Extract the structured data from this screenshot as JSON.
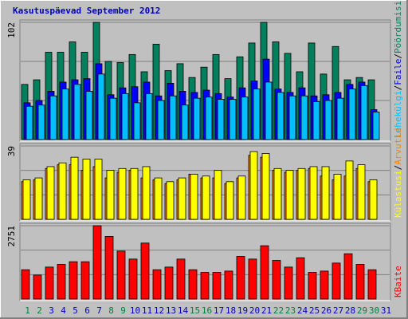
{
  "chart_data": [
    {
      "type": "bar",
      "title": "Kasutuspäevad September 2012",
      "ylim": [
        0,
        102
      ],
      "yticks": [
        102
      ],
      "legend_separator": "/",
      "series": [
        {
          "name": "Pöördumisi",
          "color": "#00805c",
          "values": [
            48,
            52,
            76,
            76,
            85,
            76,
            102,
            68,
            67,
            74,
            59,
            83,
            60,
            66,
            54,
            63,
            74,
            53,
            72,
            84,
            102,
            85,
            75,
            59,
            84,
            57,
            81,
            52,
            54,
            52,
            null
          ]
        },
        {
          "name": "Faile",
          "color": "#0000ff",
          "values": [
            32,
            34,
            42,
            50,
            52,
            53,
            66,
            39,
            45,
            46,
            50,
            38,
            49,
            42,
            41,
            43,
            40,
            37,
            45,
            51,
            70,
            44,
            41,
            45,
            38,
            39,
            41,
            48,
            50,
            26,
            null
          ]
        },
        {
          "name": "Lehekülgi",
          "color": "#00bfff",
          "values": [
            29,
            30,
            38,
            44,
            48,
            42,
            57,
            36,
            40,
            32,
            40,
            34,
            38,
            30,
            36,
            37,
            35,
            35,
            37,
            44,
            50,
            41,
            38,
            38,
            33,
            34,
            36,
            44,
            47,
            24,
            null
          ]
        }
      ]
    },
    {
      "type": "bar",
      "ylim": [
        0,
        39
      ],
      "yticks": [
        39
      ],
      "legend_separator": "/",
      "series": [
        {
          "name": "Arvutid",
          "color": "#ff8000",
          "values": [
            20,
            21,
            27,
            29,
            29,
            26,
            28,
            22,
            25,
            26,
            22,
            21,
            19,
            21,
            24,
            22,
            22,
            19,
            22,
            34,
            33,
            26,
            25,
            26,
            27,
            23,
            21,
            23,
            27,
            20,
            null
          ]
        },
        {
          "name": "Külastusi",
          "color": "#ffff00",
          "values": [
            21,
            22,
            28,
            30,
            33,
            32,
            32,
            26,
            27,
            27,
            28,
            22,
            20,
            22,
            24,
            23,
            26,
            20,
            23,
            36,
            35,
            27,
            26,
            27,
            28,
            28,
            24,
            31,
            29,
            21,
            null
          ]
        }
      ]
    },
    {
      "type": "bar",
      "ylim": [
        0,
        2751
      ],
      "yticks": [
        2751
      ],
      "categories": [
        "1",
        "2",
        "3",
        "4",
        "5",
        "6",
        "7",
        "8",
        "9",
        "10",
        "11",
        "12",
        "13",
        "14",
        "15",
        "16",
        "17",
        "18",
        "19",
        "20",
        "21",
        "22",
        "23",
        "24",
        "25",
        "26",
        "27",
        "28",
        "29",
        "30",
        "31"
      ],
      "category_colors": [
        "#008040",
        "#008040",
        "#0000c0",
        "#0000c0",
        "#0000c0",
        "#0000c0",
        "#0000c0",
        "#008040",
        "#008040",
        "#0000c0",
        "#0000c0",
        "#0000c0",
        "#0000c0",
        "#0000c0",
        "#008040",
        "#008040",
        "#0000c0",
        "#0000c0",
        "#0000c0",
        "#0000c0",
        "#0000c0",
        "#008040",
        "#008040",
        "#0000c0",
        "#0000c0",
        "#0000c0",
        "#0000c0",
        "#0000c0",
        "#008040",
        "#008040",
        "#0000c0"
      ],
      "series": [
        {
          "name": "KBaite",
          "color": "#ff0000",
          "values": [
            1100,
            900,
            1200,
            1300,
            1400,
            1400,
            2751,
            2350,
            1800,
            1500,
            2100,
            1100,
            1200,
            1500,
            1100,
            1000,
            1000,
            1050,
            1600,
            1500,
            2000,
            1450,
            1200,
            1550,
            1000,
            1050,
            1350,
            1700,
            1300,
            1100,
            null
          ]
        }
      ]
    }
  ]
}
